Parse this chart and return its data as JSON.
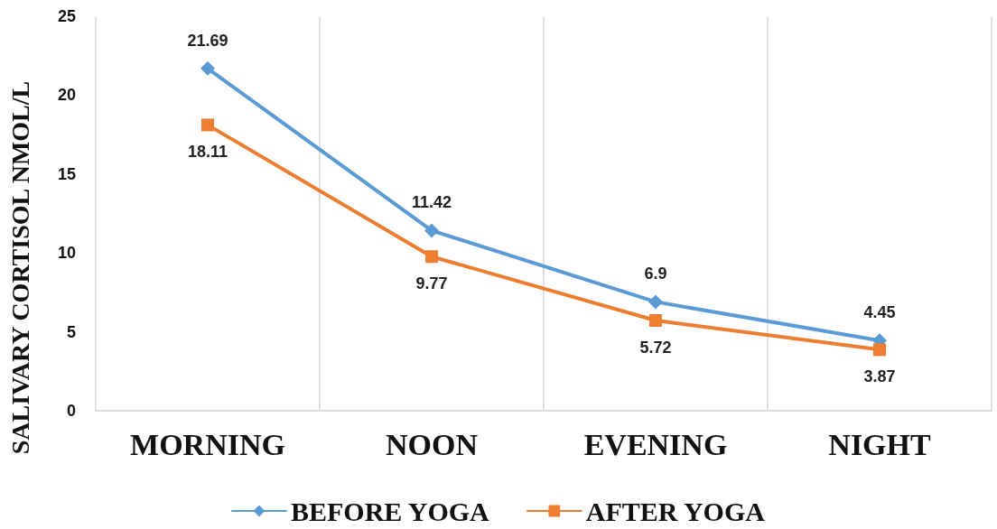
{
  "chart_data": {
    "type": "line",
    "ylabel": "SALIVARY CORTISOL NMOL/L",
    "categories": [
      "MORNING",
      "NOON",
      "EVENING",
      "NIGHT"
    ],
    "series": [
      {
        "name": "BEFORE YOGA",
        "color": "#5b9bd5",
        "marker": "diamond",
        "values": [
          21.69,
          11.42,
          6.9,
          4.45
        ]
      },
      {
        "name": "AFTER YOGA",
        "color": "#ed7d31",
        "marker": "square",
        "values": [
          18.11,
          9.77,
          5.72,
          3.87
        ]
      }
    ],
    "ylim": [
      0,
      25
    ],
    "yticks": [
      0,
      5,
      10,
      15,
      20,
      25
    ],
    "grid": "x",
    "legend": "bottom",
    "data_labels": true,
    "line_style": "solid"
  }
}
